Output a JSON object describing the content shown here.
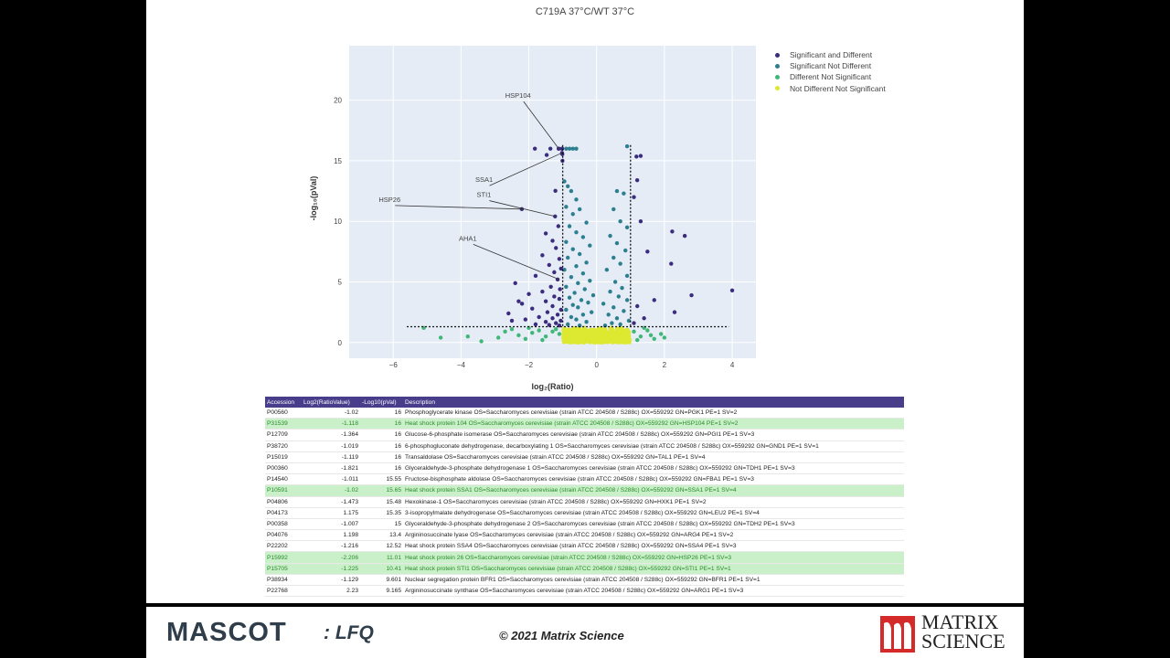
{
  "chart_data": {
    "type": "scatter",
    "title": "C719A 37°C/WT 37°C",
    "xlabel": "log₂(Ratio)",
    "ylabel": "-log₁₀(pVal)",
    "xlim": [
      -7.3,
      4.7
    ],
    "ylim": [
      -1.3,
      24.5
    ],
    "x_ticks": [
      -6,
      -4,
      -2,
      0,
      2,
      4
    ],
    "y_ticks": [
      0,
      5,
      10,
      15,
      20
    ],
    "grid": true,
    "legend_position": "right",
    "thresholds": {
      "x_low": -1,
      "x_high": 1,
      "y": 1.3
    },
    "series": [
      {
        "name": "Significant and Different",
        "color": "#3b2c7e",
        "points": [
          [
            -1.02,
            16
          ],
          [
            -1.118,
            16
          ],
          [
            -1.364,
            16
          ],
          [
            -1.019,
            16
          ],
          [
            -1.119,
            16
          ],
          [
            -1.821,
            16
          ],
          [
            -1.011,
            15.55
          ],
          [
            -1.02,
            15.65
          ],
          [
            -1.473,
            15.48
          ],
          [
            -1.007,
            15
          ],
          [
            -1.216,
            12.52
          ],
          [
            -2.206,
            11.01
          ],
          [
            -1.225,
            10.41
          ],
          [
            -1.129,
            9.601
          ],
          [
            -1.5,
            9
          ],
          [
            -1.3,
            8.4
          ],
          [
            -1.2,
            7.8
          ],
          [
            -1.6,
            7.2
          ],
          [
            -1.1,
            6.9
          ],
          [
            -1.4,
            6.4
          ],
          [
            -1.05,
            6.1
          ],
          [
            -1.25,
            5.8
          ],
          [
            -1.8,
            5.5
          ],
          [
            -1.15,
            5.2
          ],
          [
            -2.4,
            4.9
          ],
          [
            -1.35,
            4.6
          ],
          [
            -1.08,
            4.4
          ],
          [
            -1.6,
            4.2
          ],
          [
            -2.0,
            4.0
          ],
          [
            -1.25,
            3.8
          ],
          [
            -1.1,
            3.6
          ],
          [
            -1.5,
            3.4
          ],
          [
            -2.2,
            3.2
          ],
          [
            -1.3,
            3.0
          ],
          [
            -1.9,
            2.8
          ],
          [
            -1.05,
            2.7
          ],
          [
            -1.45,
            2.5
          ],
          [
            -2.6,
            2.4
          ],
          [
            -1.15,
            2.3
          ],
          [
            -1.7,
            2.1
          ],
          [
            -1.3,
            2.0
          ],
          [
            -2.1,
            1.9
          ],
          [
            -1.06,
            1.8
          ],
          [
            -1.5,
            1.7
          ],
          [
            -1.2,
            1.6
          ],
          [
            -1.8,
            1.5
          ],
          [
            -2.3,
            3.4
          ],
          [
            -2.5,
            1.8
          ],
          [
            -1.4,
            1.45
          ],
          [
            -1.1,
            1.4
          ],
          [
            1.3,
            15.4
          ],
          [
            2.23,
            9.165
          ],
          [
            2.2,
            6.5
          ],
          [
            1.175,
            15.35
          ],
          [
            1.198,
            13.4
          ],
          [
            1.1,
            12.0
          ],
          [
            1.3,
            10.0
          ],
          [
            1.5,
            7.5
          ],
          [
            2.6,
            8.8
          ],
          [
            4.0,
            4.3
          ],
          [
            2.3,
            2.5
          ],
          [
            1.7,
            3.5
          ],
          [
            2.8,
            3.9
          ],
          [
            1.4,
            2.0
          ],
          [
            1.2,
            3.0
          ],
          [
            1.1,
            1.6
          ]
        ]
      },
      {
        "name": "Significant Not Different",
        "color": "#2c7f8e",
        "points": [
          [
            -0.9,
            16
          ],
          [
            -0.8,
            16
          ],
          [
            -0.7,
            16
          ],
          [
            -0.6,
            16
          ],
          [
            0.9,
            16.2
          ],
          [
            -0.95,
            13.3
          ],
          [
            -0.85,
            12.9
          ],
          [
            -0.75,
            12.5
          ],
          [
            -0.6,
            11.8
          ],
          [
            -0.9,
            11.2
          ],
          [
            -0.5,
            11
          ],
          [
            -0.7,
            10.6
          ],
          [
            -0.3,
            9.9
          ],
          [
            -0.8,
            9.6
          ],
          [
            -0.6,
            9.1
          ],
          [
            -0.4,
            8.7
          ],
          [
            -0.9,
            8.3
          ],
          [
            -0.2,
            8
          ],
          [
            -0.7,
            7.7
          ],
          [
            -0.5,
            7.3
          ],
          [
            -0.85,
            7.0
          ],
          [
            -0.3,
            6.6
          ],
          [
            -0.6,
            6.3
          ],
          [
            -0.95,
            6.0
          ],
          [
            -0.4,
            5.7
          ],
          [
            -0.75,
            5.4
          ],
          [
            -0.2,
            5.1
          ],
          [
            -0.55,
            4.9
          ],
          [
            -0.9,
            4.6
          ],
          [
            -0.35,
            4.4
          ],
          [
            -0.65,
            4.1
          ],
          [
            -0.1,
            3.9
          ],
          [
            -0.8,
            3.7
          ],
          [
            -0.45,
            3.5
          ],
          [
            -0.25,
            3.3
          ],
          [
            -0.7,
            3.1
          ],
          [
            -0.55,
            2.9
          ],
          [
            -0.9,
            2.7
          ],
          [
            -0.15,
            2.5
          ],
          [
            -0.4,
            2.3
          ],
          [
            -0.75,
            2.1
          ],
          [
            -0.6,
            1.9
          ],
          [
            -0.3,
            1.7
          ],
          [
            -0.85,
            1.5
          ],
          [
            -0.5,
            1.4
          ],
          [
            0.8,
            12.3
          ],
          [
            0.6,
            12.5
          ],
          [
            0.5,
            11
          ],
          [
            0.7,
            10
          ],
          [
            0.9,
            9.5
          ],
          [
            0.4,
            8.8
          ],
          [
            0.6,
            8.2
          ],
          [
            0.85,
            7.6
          ],
          [
            0.5,
            7.0
          ],
          [
            0.7,
            6.5
          ],
          [
            0.3,
            6.0
          ],
          [
            0.9,
            5.5
          ],
          [
            0.55,
            5.0
          ],
          [
            0.75,
            4.5
          ],
          [
            0.4,
            4.2
          ],
          [
            0.65,
            3.8
          ],
          [
            0.9,
            3.5
          ],
          [
            0.2,
            3.2
          ],
          [
            0.5,
            2.9
          ],
          [
            0.8,
            2.6
          ],
          [
            0.35,
            2.3
          ],
          [
            0.6,
            2.0
          ],
          [
            0.95,
            1.8
          ],
          [
            0.45,
            1.6
          ],
          [
            0.7,
            1.5
          ],
          [
            0.25,
            1.4
          ]
        ]
      },
      {
        "name": "Different Not Significant",
        "color": "#3fb877",
        "points": [
          [
            -5.1,
            1.2
          ],
          [
            -4.6,
            0.4
          ],
          [
            -3.8,
            0.5
          ],
          [
            -3.4,
            0.1
          ],
          [
            -2.9,
            0.4
          ],
          [
            -2.7,
            0.9
          ],
          [
            -2.5,
            1.1
          ],
          [
            -2.3,
            0.6
          ],
          [
            -2.1,
            0.3
          ],
          [
            -1.9,
            0.8
          ],
          [
            -1.7,
            1.0
          ],
          [
            -1.5,
            0.5
          ],
          [
            -1.3,
            0.9
          ],
          [
            -1.1,
            0.7
          ],
          [
            -1.6,
            0.2
          ],
          [
            -2.0,
            1.2
          ],
          [
            -1.2,
            1.1
          ],
          [
            1.1,
            0.9
          ],
          [
            1.3,
            0.5
          ],
          [
            1.5,
            1.0
          ],
          [
            1.7,
            0.3
          ],
          [
            1.9,
            0.7
          ],
          [
            2.0,
            0.4
          ],
          [
            1.2,
            0.2
          ],
          [
            1.4,
            1.2
          ],
          [
            1.6,
            0.6
          ]
        ]
      },
      {
        "name": "Not Different Not Significant",
        "color": "#dde830",
        "points": []
      }
    ],
    "annotations": [
      {
        "text": "HSP104",
        "x": -1.118,
        "y": 16
      },
      {
        "text": "SSA1",
        "x": -1.02,
        "y": 15.65
      },
      {
        "text": "STI1",
        "x": -1.225,
        "y": 10.41
      },
      {
        "text": "HSP26",
        "x": -2.206,
        "y": 11.01
      },
      {
        "text": "AHA1",
        "x": -1.1,
        "y": 5.2
      }
    ]
  },
  "table": {
    "headers": [
      "Accession",
      "Log2(RatioValue)",
      "-Log10(pVal)",
      "Description"
    ],
    "rows": [
      {
        "acc": "P00560",
        "log2": "-1.02",
        "pval": "16",
        "desc": "Phosphoglycerate kinase OS=Saccharomyces cerevisiae (strain ATCC 204508 / S288c) OX=559292 GN=PGK1 PE=1 SV=2",
        "hl": false
      },
      {
        "acc": "P31539",
        "log2": "-1.118",
        "pval": "16",
        "desc": "Heat shock protein 104 OS=Saccharomyces cerevisiae (strain ATCC 204508 / S288c) OX=559292 GN=HSP104 PE=1 SV=2",
        "hl": true
      },
      {
        "acc": "P12709",
        "log2": "-1.364",
        "pval": "16",
        "desc": "Glucose-6-phosphate isomerase OS=Saccharomyces cerevisiae (strain ATCC 204508 / S288c) OX=559292 GN=PGI1 PE=1 SV=3",
        "hl": false
      },
      {
        "acc": "P38720",
        "log2": "-1.019",
        "pval": "16",
        "desc": "6-phosphogluconate dehydrogenase, decarboxylating 1 OS=Saccharomyces cerevisiae (strain ATCC 204508 / S288c) OX=559292 GN=GND1 PE=1 SV=1",
        "hl": false
      },
      {
        "acc": "P15019",
        "log2": "-1.119",
        "pval": "16",
        "desc": "Transaldolase OS=Saccharomyces cerevisiae (strain ATCC 204508 / S288c) OX=559292 GN=TAL1 PE=1 SV=4",
        "hl": false
      },
      {
        "acc": "P00360",
        "log2": "-1.821",
        "pval": "16",
        "desc": "Glyceraldehyde-3-phosphate dehydrogenase 1 OS=Saccharomyces cerevisiae (strain ATCC 204508 / S288c) OX=559292 GN=TDH1 PE=1 SV=3",
        "hl": false
      },
      {
        "acc": "P14540",
        "log2": "-1.011",
        "pval": "15.55",
        "desc": "Fructose-bisphosphate aldolase OS=Saccharomyces cerevisiae (strain ATCC 204508 / S288c) OX=559292 GN=FBA1 PE=1 SV=3",
        "hl": false
      },
      {
        "acc": "P10591",
        "log2": "-1.02",
        "pval": "15.65",
        "desc": "Heat shock protein SSA1 OS=Saccharomyces cerevisiae (strain ATCC 204508 / S288c) OX=559292 GN=SSA1 PE=1 SV=4",
        "hl": true
      },
      {
        "acc": "P04806",
        "log2": "-1.473",
        "pval": "15.48",
        "desc": "Hexokinase-1 OS=Saccharomyces cerevisiae (strain ATCC 204508 / S288c) OX=559292 GN=HXK1 PE=1 SV=2",
        "hl": false
      },
      {
        "acc": "P04173",
        "log2": "1.175",
        "pval": "15.35",
        "desc": "3-isopropylmalate dehydrogenase OS=Saccharomyces cerevisiae (strain ATCC 204508 / S288c) OX=559292 GN=LEU2 PE=1 SV=4",
        "hl": false
      },
      {
        "acc": "P00358",
        "log2": "-1.007",
        "pval": "15",
        "desc": "Glyceraldehyde-3-phosphate dehydrogenase 2 OS=Saccharomyces cerevisiae (strain ATCC 204508 / S288c) OX=559292 GN=TDH2 PE=1 SV=3",
        "hl": false
      },
      {
        "acc": "P04076",
        "log2": "1.198",
        "pval": "13.4",
        "desc": "Argininosuccinate lyase OS=Saccharomyces cerevisiae (strain ATCC 204508 / S288c) OX=559292 GN=ARG4 PE=1 SV=2",
        "hl": false
      },
      {
        "acc": "P22202",
        "log2": "-1.216",
        "pval": "12.52",
        "desc": "Heat shock protein SSA4 OS=Saccharomyces cerevisiae (strain ATCC 204508 / S288c) OX=559292 GN=SSA4 PE=1 SV=3",
        "hl": false
      },
      {
        "acc": "P15992",
        "log2": "-2.206",
        "pval": "11.01",
        "desc": "Heat shock protein 26 OS=Saccharomyces cerevisiae (strain ATCC 204508 / S288c) OX=559292 GN=HSP26 PE=1 SV=3",
        "hl": true
      },
      {
        "acc": "P15705",
        "log2": "-1.225",
        "pval": "10.41",
        "desc": "Heat shock protein STI1 OS=Saccharomyces cerevisiae (strain ATCC 204508 / S288c) OX=559292 GN=STI1 PE=1 SV=1",
        "hl": true
      },
      {
        "acc": "P38934",
        "log2": "-1.129",
        "pval": "9.601",
        "desc": "Nuclear segregation protein BFR1 OS=Saccharomyces cerevisiae (strain ATCC 204508 / S288c) OX=559292 GN=BFR1 PE=1 SV=1",
        "hl": false
      },
      {
        "acc": "P22768",
        "log2": "2.23",
        "pval": "9.165",
        "desc": "Argininosuccinate synthase OS=Saccharomyces cerevisiae (strain ATCC 204508 / S288c) OX=559292 GN=ARG1 PE=1 SV=3",
        "hl": false
      }
    ]
  },
  "footer": {
    "product": "MASCOT",
    "module": ": LFQ",
    "copyright": "© 2021 Matrix Science",
    "company_line1": "MATRIX",
    "company_line2": "SCIENCE",
    "brand_color": "#d42a2a"
  }
}
